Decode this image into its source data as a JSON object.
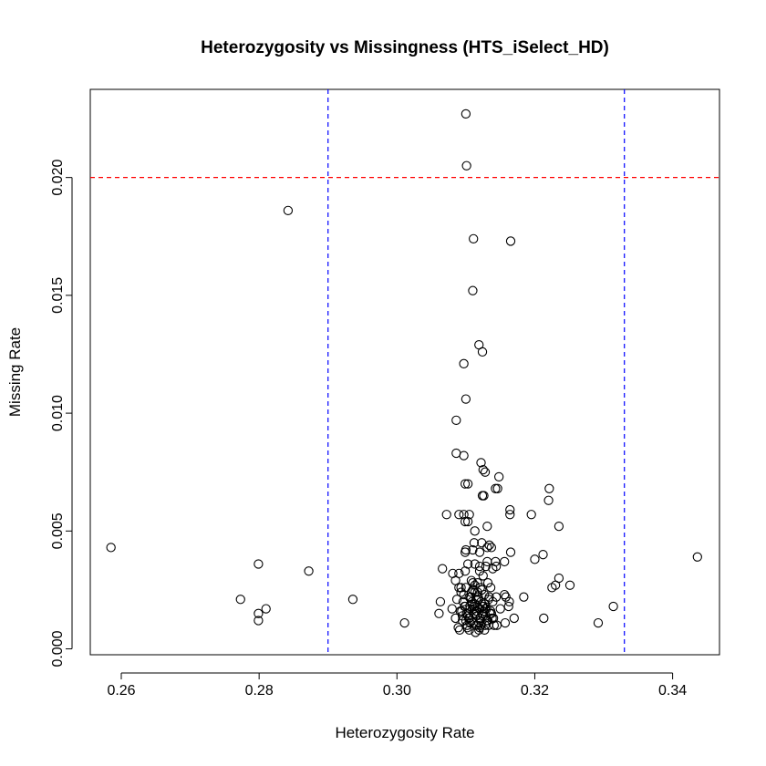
{
  "chart_data": {
    "type": "scatter",
    "title": "Heterozygosity vs Missingness (HTS_iSelect_HD)",
    "xlabel": "Heterozygosity Rate",
    "ylabel": "Missing Rate",
    "xlim": [
      0.2555,
      0.3468
    ],
    "ylim": [
      -0.00025,
      0.02374
    ],
    "xticks": [
      0.26,
      0.28,
      0.3,
      0.32,
      0.34
    ],
    "xtick_labels": [
      "0.26",
      "0.28",
      "0.30",
      "0.32",
      "0.34"
    ],
    "yticks": [
      0.0,
      0.005,
      0.01,
      0.015,
      0.02
    ],
    "ytick_labels": [
      "0.000",
      "0.005",
      "0.010",
      "0.015",
      "0.020"
    ],
    "grid": false,
    "reference_lines": [
      {
        "orientation": "horizontal",
        "value": 0.02,
        "color": "#ff0000",
        "style": "dashed"
      },
      {
        "orientation": "vertical",
        "value": 0.29,
        "color": "#0000ff",
        "style": "dashed"
      },
      {
        "orientation": "vertical",
        "value": 0.333,
        "color": "#0000ff",
        "style": "dashed"
      }
    ],
    "x": [
      0.31,
      0.3101,
      0.2842,
      0.3111,
      0.3165,
      0.311,
      0.3119,
      0.3124,
      0.3097,
      0.31,
      0.3086,
      0.3086,
      0.3097,
      0.3122,
      0.3125,
      0.3128,
      0.3148,
      0.3103,
      0.3099,
      0.3146,
      0.3143,
      0.3124,
      0.3126,
      0.3221,
      0.322,
      0.3164,
      0.3195,
      0.3164,
      0.3072,
      0.309,
      0.3097,
      0.3105,
      0.3099,
      0.3103,
      0.3113,
      0.3131,
      0.3235,
      0.3112,
      0.3123,
      0.3134,
      0.3137,
      0.311,
      0.31,
      0.312,
      0.3131,
      0.3165,
      0.3212,
      0.32,
      0.3099,
      0.2585,
      0.3436,
      0.2799,
      0.3143,
      0.3131,
      0.3103,
      0.3113,
      0.312,
      0.3129,
      0.3156,
      0.3144,
      0.309,
      0.3081,
      0.3099,
      0.312,
      0.3139,
      0.2872,
      0.3066,
      0.3235,
      0.3251,
      0.323,
      0.3225,
      0.3184,
      0.3085,
      0.3108,
      0.311,
      0.3125,
      0.309,
      0.3093,
      0.3113,
      0.3121,
      0.3156,
      0.3158,
      0.2773,
      0.2936,
      0.3063,
      0.3087,
      0.3097,
      0.3105,
      0.3115,
      0.3133,
      0.3144,
      0.3163,
      0.281,
      0.2799,
      0.3314,
      0.3061,
      0.308,
      0.3092,
      0.3106,
      0.3116,
      0.3124,
      0.3128,
      0.3136,
      0.315,
      0.3162,
      0.317,
      0.3213,
      0.2799,
      0.3011,
      0.3292,
      0.3085,
      0.3091,
      0.31,
      0.3111,
      0.3122,
      0.3131,
      0.3141,
      0.3157,
      0.3096,
      0.3109,
      0.3118,
      0.3127,
      0.3139,
      0.3095,
      0.3105,
      0.3114,
      0.3125,
      0.3135,
      0.3089,
      0.3102,
      0.312,
      0.3133,
      0.3145,
      0.3108,
      0.3117,
      0.3127,
      0.3098,
      0.3112,
      0.313,
      0.3104,
      0.3121,
      0.3138,
      0.3094,
      0.3115,
      0.3126,
      0.3106,
      0.3119,
      0.3132,
      0.31,
      0.311,
      0.3123,
      0.3136,
      0.3113,
      0.3128,
      0.3103,
      0.3116,
      0.3129,
      0.3107,
      0.3118,
      0.3134,
      0.3101,
      0.3111,
      0.3124,
      0.3137,
      0.3095,
      0.3108,
      0.3121,
      0.313,
      0.3114,
      0.3105,
      0.3119,
      0.3127,
      0.3099,
      0.3112,
      0.3125,
      0.3117,
      0.3132,
      0.3109,
      0.3122,
      0.3102,
      0.3115,
      0.3128,
      0.3106,
      0.312,
      0.314,
      0.3093,
      0.3113
    ],
    "y": [
      0.0227,
      0.0205,
      0.0186,
      0.0174,
      0.0173,
      0.0152,
      0.0129,
      0.0126,
      0.0121,
      0.0106,
      0.0097,
      0.0083,
      0.0082,
      0.0079,
      0.0076,
      0.0075,
      0.0073,
      0.007,
      0.007,
      0.0068,
      0.0068,
      0.0065,
      0.0065,
      0.0068,
      0.0063,
      0.0059,
      0.0057,
      0.0057,
      0.0057,
      0.0057,
      0.0057,
      0.0057,
      0.0054,
      0.0054,
      0.005,
      0.0052,
      0.0052,
      0.0045,
      0.0045,
      0.0044,
      0.0043,
      0.0042,
      0.0042,
      0.0041,
      0.0043,
      0.0041,
      0.004,
      0.0038,
      0.0041,
      0.0043,
      0.0039,
      0.0036,
      0.0037,
      0.0037,
      0.0036,
      0.0036,
      0.0035,
      0.0035,
      0.0037,
      0.0035,
      0.0032,
      0.0032,
      0.0033,
      0.0033,
      0.0034,
      0.0033,
      0.0034,
      0.003,
      0.0027,
      0.0027,
      0.0026,
      0.0022,
      0.0029,
      0.0029,
      0.0028,
      0.0031,
      0.0026,
      0.0026,
      0.0027,
      0.0026,
      0.0023,
      0.0022,
      0.0021,
      0.0021,
      0.002,
      0.0021,
      0.0023,
      0.0022,
      0.0021,
      0.0021,
      0.0022,
      0.002,
      0.0017,
      0.0015,
      0.0018,
      0.0015,
      0.0017,
      0.0016,
      0.0018,
      0.0016,
      0.0018,
      0.0017,
      0.0016,
      0.0017,
      0.0018,
      0.0013,
      0.0013,
      0.0012,
      0.0011,
      0.0011,
      0.0013,
      0.0008,
      0.0012,
      0.0011,
      0.001,
      0.0012,
      0.001,
      0.0011,
      0.002,
      0.0019,
      0.0021,
      0.0019,
      0.002,
      0.0014,
      0.0013,
      0.0015,
      0.0014,
      0.0015,
      0.0009,
      0.0009,
      0.0009,
      0.001,
      0.001,
      0.0024,
      0.0024,
      0.0023,
      0.0018,
      0.0017,
      0.0017,
      0.0013,
      0.0013,
      0.0013,
      0.0016,
      0.0016,
      0.0016,
      0.0011,
      0.0011,
      0.0012,
      0.0026,
      0.0025,
      0.0025,
      0.0026,
      0.0019,
      0.0019,
      0.0014,
      0.0014,
      0.0014,
      0.0022,
      0.0022,
      0.0022,
      0.0015,
      0.0015,
      0.0015,
      0.0015,
      0.0012,
      0.0012,
      0.0012,
      0.0012,
      0.0007,
      0.0008,
      0.0008,
      0.0008,
      0.0018,
      0.0018,
      0.0018,
      0.0028,
      0.0028,
      0.002,
      0.002,
      0.001,
      0.001,
      0.001,
      0.0017,
      0.0017,
      0.0013,
      0.0024,
      0.0024
    ]
  }
}
